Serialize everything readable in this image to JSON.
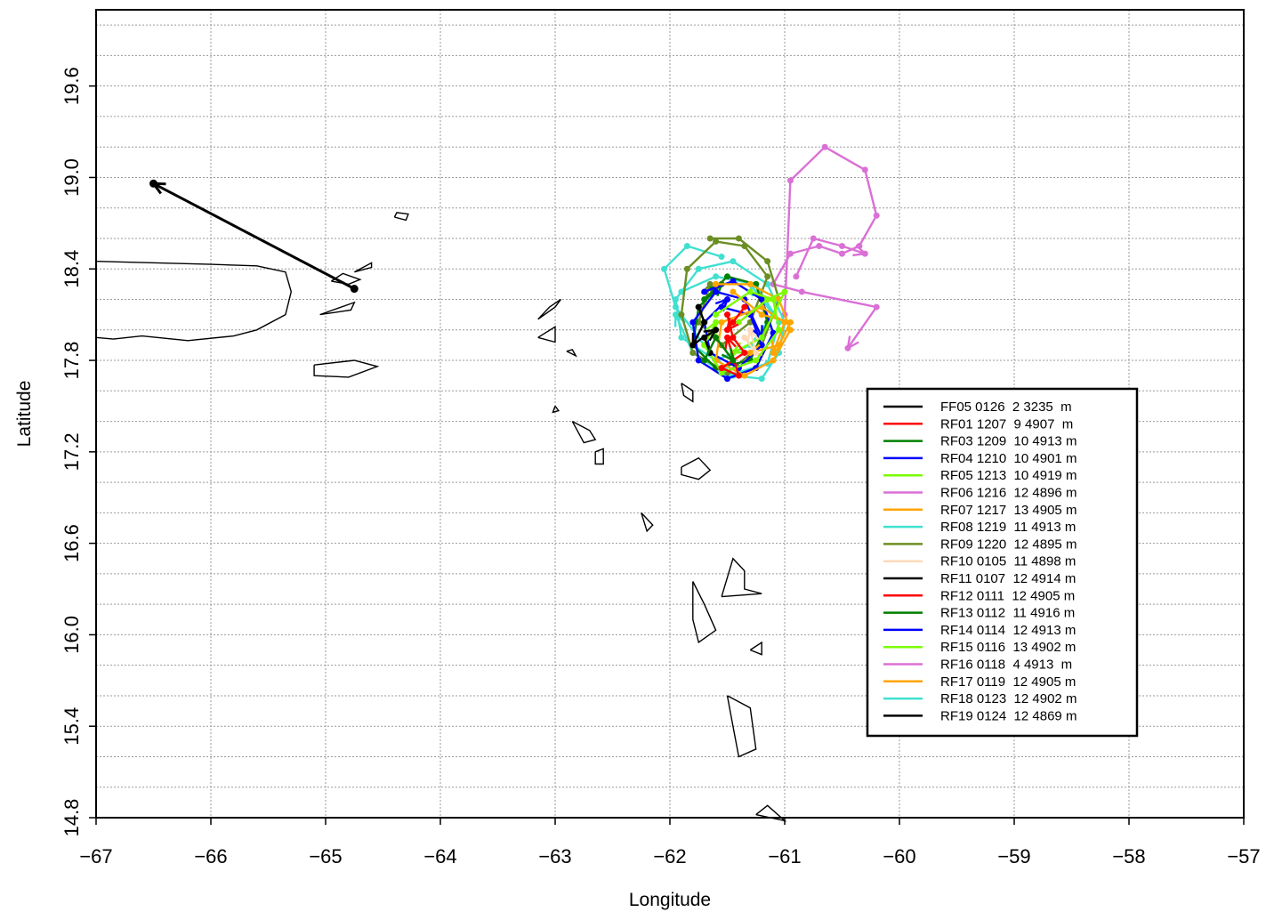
{
  "chart_data": {
    "type": "line",
    "xlabel": "Longitude",
    "ylabel": "Latitude",
    "xlim": [
      -67,
      -57
    ],
    "ylim": [
      14.8,
      20.1
    ],
    "x_ticks": [
      -67,
      -66,
      -65,
      -64,
      -63,
      -62,
      -61,
      -60,
      -59,
      -58,
      -57
    ],
    "x_tick_labels": [
      "−67",
      "−66",
      "−65",
      "−64",
      "−63",
      "−62",
      "−61",
      "−60",
      "−59",
      "−58",
      "−57"
    ],
    "y_ticks": [
      14.8,
      15.4,
      16.0,
      16.6,
      17.2,
      17.8,
      18.4,
      19.0,
      19.6
    ],
    "y_tick_labels": [
      "14.8",
      "15.4",
      "16.0",
      "16.6",
      "17.2",
      "17.8",
      "18.4",
      "19.0",
      "19.6"
    ],
    "grid": true,
    "legend_position": "lower-right",
    "legend": [
      {
        "label": "FF05 0126  2 3235  m",
        "color": "#000000"
      },
      {
        "label": "RF01 1207  9 4907  m",
        "color": "#ff0000"
      },
      {
        "label": "RF03 1209  10 4913 m",
        "color": "#008000"
      },
      {
        "label": "RF04 1210  10 4901 m",
        "color": "#0000ff"
      },
      {
        "label": "RF05 1213  10 4919 m",
        "color": "#7cfc00"
      },
      {
        "label": "RF06 1216  12 4896 m",
        "color": "#da70d6"
      },
      {
        "label": "RF07 1217  13 4905 m",
        "color": "#ffa500"
      },
      {
        "label": "RF08 1219  11 4913 m",
        "color": "#40e0d0"
      },
      {
        "label": "RF09 1220  12 4895 m",
        "color": "#6b8e23"
      },
      {
        "label": "RF10 0105  11 4898 m",
        "color": "#ffdab9"
      },
      {
        "label": "RF11 0107  12 4914 m",
        "color": "#000000"
      },
      {
        "label": "RF12 0111  12 4905 m",
        "color": "#ff0000"
      },
      {
        "label": "RF13 0112  11 4916 m",
        "color": "#008000"
      },
      {
        "label": "RF14 0114  12 4913 m",
        "color": "#0000ff"
      },
      {
        "label": "RF15 0116  13 4902 m",
        "color": "#7cfc00"
      },
      {
        "label": "RF16 0118  4 4913  m",
        "color": "#da70d6"
      },
      {
        "label": "RF17 0119  12 4905 m",
        "color": "#ffa500"
      },
      {
        "label": "RF18 0123  12 4902 m",
        "color": "#40e0d0"
      },
      {
        "label": "RF19 0124  12 4869 m",
        "color": "#000000"
      }
    ],
    "series": [
      {
        "name": "FF05 0126  2 3235  m",
        "color": "#000000",
        "x": [
          -64.75,
          -66.5
        ],
        "y": [
          18.27,
          18.96
        ]
      },
      {
        "name": "RF06 1216  12 4896 m",
        "color": "#da70d6",
        "x": [
          -61.0,
          -60.95,
          -60.65,
          -60.3,
          -60.2,
          -60.35,
          -60.5,
          -60.7,
          -60.95,
          -61.1,
          -60.85,
          -60.2,
          -60.45
        ],
        "y": [
          18.1,
          18.98,
          19.2,
          19.05,
          18.75,
          18.55,
          18.5,
          18.55,
          18.5,
          18.3,
          18.25,
          18.15,
          17.88
        ]
      },
      {
        "name": "RF16 0118  4 4913  m",
        "color": "#da70d6",
        "x": [
          -60.9,
          -60.75,
          -60.5,
          -60.3
        ],
        "y": [
          18.35,
          18.6,
          18.55,
          18.5
        ]
      },
      {
        "name": "RF08 1219  11 4913 m",
        "color": "#40e0d0",
        "x": [
          -61.55,
          -61.85,
          -62.05,
          -61.95,
          -61.7,
          -61.45,
          -61.2,
          -61.05,
          -61.0,
          -61.15,
          -61.45,
          -61.75,
          -61.95,
          -61.9,
          -61.6,
          -61.3,
          -61.1,
          -61.3
        ],
        "y": [
          18.48,
          18.55,
          18.4,
          18.15,
          17.9,
          17.7,
          17.68,
          17.85,
          18.05,
          18.3,
          18.45,
          18.4,
          18.2,
          17.95,
          17.8,
          17.9,
          18.1,
          18.3
        ]
      },
      {
        "name": "RF18 0123  12 4902 m",
        "color": "#40e0d0",
        "x": [
          -61.9,
          -61.6,
          -61.25,
          -61.05,
          -61.15,
          -61.5,
          -61.8,
          -61.95
        ],
        "y": [
          18.25,
          18.35,
          18.3,
          18.05,
          17.78,
          17.7,
          17.85,
          18.1
        ]
      },
      {
        "name": "RF09 1220  12 4895 m",
        "color": "#6b8e23",
        "x": [
          -61.65,
          -61.4,
          -61.15,
          -61.05,
          -61.2,
          -61.5,
          -61.8,
          -61.9,
          -61.85,
          -61.6,
          -61.35,
          -61.15,
          -61.3,
          -61.55,
          -61.75,
          -61.65
        ],
        "y": [
          18.6,
          18.6,
          18.45,
          18.2,
          17.9,
          17.72,
          17.85,
          18.1,
          18.4,
          18.58,
          18.55,
          18.35,
          18.05,
          17.9,
          18.05,
          18.3
        ]
      },
      {
        "name": "RF03 1209  10 4913 m",
        "color": "#008000",
        "x": [
          -61.7,
          -61.5,
          -61.25,
          -61.15,
          -61.3,
          -61.6,
          -61.8,
          -61.75,
          -61.55
        ],
        "y": [
          18.2,
          18.35,
          18.3,
          18.05,
          17.8,
          17.75,
          17.9,
          18.15,
          18.3
        ]
      },
      {
        "name": "RF04 1210  10 4901 m",
        "color": "#0000ff",
        "x": [
          -61.7,
          -61.45,
          -61.2,
          -61.1,
          -61.25,
          -61.5,
          -61.75,
          -61.8,
          -61.6,
          -61.35,
          -61.2
        ],
        "y": [
          18.25,
          18.32,
          18.2,
          17.98,
          17.75,
          17.68,
          17.8,
          18.05,
          18.25,
          18.2,
          17.95
        ]
      },
      {
        "name": "RF14 0114  12 4913 m",
        "color": "#0000ff",
        "x": [
          -61.55,
          -61.3,
          -61.2,
          -61.4,
          -61.65,
          -61.7,
          -61.5
        ],
        "y": [
          18.15,
          18.1,
          17.9,
          17.75,
          17.85,
          18.05,
          18.2
        ]
      },
      {
        "name": "RF07 1217  13 4905 m",
        "color": "#ffa500",
        "x": [
          -61.6,
          -61.3,
          -61.05,
          -60.95,
          -61.1,
          -61.35,
          -61.6,
          -61.55,
          -61.2,
          -61.0,
          -61.1
        ],
        "y": [
          18.3,
          18.3,
          18.2,
          18.0,
          17.8,
          17.7,
          17.8,
          18.05,
          18.15,
          18.05,
          17.85
        ]
      },
      {
        "name": "RF17 0119  12 4905 m",
        "color": "#ffa500",
        "x": [
          -61.45,
          -61.2,
          -60.95,
          -61.05,
          -61.3
        ],
        "y": [
          18.25,
          18.1,
          18.05,
          17.9,
          17.85
        ]
      },
      {
        "name": "RF05 1213  10 4919 m",
        "color": "#7cfc00",
        "x": [
          -61.6,
          -61.3,
          -61.1,
          -61.05,
          -61.25,
          -61.55,
          -61.7,
          -61.6
        ],
        "y": [
          18.1,
          18.25,
          18.2,
          18.0,
          17.8,
          17.72,
          17.9,
          18.05
        ]
      },
      {
        "name": "RF15 0116  13 4902 m",
        "color": "#7cfc00",
        "x": [
          -61.4,
          -61.15,
          -61.0,
          -61.2,
          -61.45
        ],
        "y": [
          18.05,
          18.2,
          18.25,
          17.95,
          17.85
        ]
      },
      {
        "name": "RF01 1207  9 4907  m",
        "color": "#ff0000",
        "x": [
          -61.5,
          -61.45,
          -61.35,
          -61.55,
          -61.4,
          -61.5
        ],
        "y": [
          18.1,
          17.95,
          17.85,
          17.75,
          17.7,
          17.95
        ]
      },
      {
        "name": "RF12 0111  12 4905 m",
        "color": "#ff0000",
        "x": [
          -61.45,
          -61.35,
          -61.5
        ],
        "y": [
          18.05,
          18.15,
          18.0
        ]
      },
      {
        "name": "RF11 0107  12 4914 m",
        "color": "#000000",
        "x": [
          -61.75,
          -61.7,
          -61.8
        ],
        "y": [
          18.15,
          18.05,
          17.9
        ]
      },
      {
        "name": "RF19 0124  12 4869 m",
        "color": "#000000",
        "x": [
          -61.65,
          -61.7,
          -61.6
        ],
        "y": [
          17.85,
          17.95,
          18.0
        ]
      },
      {
        "name": "RF13 0112  11 4916 m",
        "color": "#008000",
        "x": [
          -61.7,
          -61.6,
          -61.45
        ],
        "y": [
          17.8,
          17.95,
          17.8
        ]
      },
      {
        "name": "RF10 0105  11 4898 m",
        "color": "#ffdab9",
        "x": [
          -61.35,
          -61.25,
          -61.3
        ],
        "y": [
          17.95,
          17.85,
          18.0
        ]
      }
    ],
    "islands": [
      [
        [
          -67.0,
          18.45
        ],
        [
          -66.0,
          18.43
        ],
        [
          -65.6,
          18.42
        ],
        [
          -65.35,
          18.38
        ],
        [
          -65.3,
          18.25
        ],
        [
          -65.35,
          18.1
        ],
        [
          -65.6,
          18.0
        ],
        [
          -65.8,
          17.96
        ],
        [
          -66.2,
          17.93
        ],
        [
          -66.6,
          17.96
        ],
        [
          -66.85,
          17.94
        ],
        [
          -67.0,
          17.95
        ]
      ],
      [
        [
          -64.95,
          18.32
        ],
        [
          -64.85,
          18.37
        ],
        [
          -64.7,
          18.33
        ],
        [
          -64.8,
          18.3
        ],
        [
          -64.95,
          18.32
        ]
      ],
      [
        [
          -64.75,
          18.38
        ],
        [
          -64.6,
          18.44
        ],
        [
          -64.6,
          18.41
        ],
        [
          -64.75,
          18.38
        ]
      ],
      [
        [
          -64.4,
          18.74
        ],
        [
          -64.3,
          18.72
        ],
        [
          -64.28,
          18.76
        ],
        [
          -64.38,
          18.77
        ],
        [
          -64.4,
          18.74
        ]
      ],
      [
        [
          -65.05,
          18.1
        ],
        [
          -64.75,
          18.18
        ],
        [
          -64.78,
          18.13
        ],
        [
          -65.05,
          18.1
        ]
      ],
      [
        [
          -65.1,
          17.77
        ],
        [
          -64.75,
          17.8
        ],
        [
          -64.55,
          17.76
        ],
        [
          -64.8,
          17.69
        ],
        [
          -65.1,
          17.7
        ],
        [
          -65.1,
          17.77
        ]
      ],
      [
        [
          -63.15,
          18.07
        ],
        [
          -63.05,
          18.15
        ],
        [
          -62.95,
          18.2
        ],
        [
          -63.0,
          18.15
        ],
        [
          -63.15,
          18.07
        ]
      ],
      [
        [
          -63.15,
          17.95
        ],
        [
          -63.0,
          18.02
        ],
        [
          -63.0,
          17.92
        ],
        [
          -63.15,
          17.95
        ]
      ],
      [
        [
          -62.9,
          17.86
        ],
        [
          -62.85,
          17.87
        ],
        [
          -62.82,
          17.83
        ],
        [
          -62.9,
          17.86
        ]
      ],
      [
        [
          -63.0,
          17.5
        ],
        [
          -62.97,
          17.47
        ],
        [
          -63.02,
          17.46
        ],
        [
          -63.0,
          17.5
        ]
      ],
      [
        [
          -62.85,
          17.4
        ],
        [
          -62.7,
          17.34
        ],
        [
          -62.65,
          17.28
        ],
        [
          -62.75,
          17.26
        ],
        [
          -62.85,
          17.4
        ]
      ],
      [
        [
          -62.65,
          17.2
        ],
        [
          -62.58,
          17.22
        ],
        [
          -62.58,
          17.12
        ],
        [
          -62.65,
          17.12
        ],
        [
          -62.65,
          17.2
        ]
      ],
      [
        [
          -61.9,
          17.1
        ],
        [
          -61.75,
          17.16
        ],
        [
          -61.65,
          17.08
        ],
        [
          -61.75,
          17.02
        ],
        [
          -61.9,
          17.05
        ],
        [
          -61.9,
          17.1
        ]
      ],
      [
        [
          -61.9,
          17.65
        ],
        [
          -61.8,
          17.6
        ],
        [
          -61.8,
          17.53
        ],
        [
          -61.88,
          17.57
        ],
        [
          -61.9,
          17.65
        ]
      ],
      [
        [
          -62.25,
          16.8
        ],
        [
          -62.2,
          16.68
        ],
        [
          -62.15,
          16.72
        ],
        [
          -62.25,
          16.8
        ]
      ],
      [
        [
          -61.8,
          16.35
        ],
        [
          -61.7,
          16.2
        ],
        [
          -61.6,
          16.03
        ],
        [
          -61.75,
          15.95
        ],
        [
          -61.8,
          16.1
        ],
        [
          -61.8,
          16.35
        ]
      ],
      [
        [
          -61.55,
          16.25
        ],
        [
          -61.45,
          16.5
        ],
        [
          -61.35,
          16.42
        ],
        [
          -61.35,
          16.3
        ],
        [
          -61.2,
          16.27
        ],
        [
          -61.55,
          16.25
        ]
      ],
      [
        [
          -61.3,
          15.9
        ],
        [
          -61.2,
          15.95
        ],
        [
          -61.2,
          15.87
        ],
        [
          -61.3,
          15.9
        ]
      ],
      [
        [
          -61.5,
          15.6
        ],
        [
          -61.3,
          15.52
        ],
        [
          -61.25,
          15.25
        ],
        [
          -61.4,
          15.2
        ],
        [
          -61.45,
          15.4
        ],
        [
          -61.5,
          15.6
        ]
      ],
      [
        [
          -61.25,
          14.82
        ],
        [
          -61.0,
          14.78
        ],
        [
          -61.15,
          14.88
        ],
        [
          -61.25,
          14.82
        ]
      ]
    ]
  }
}
